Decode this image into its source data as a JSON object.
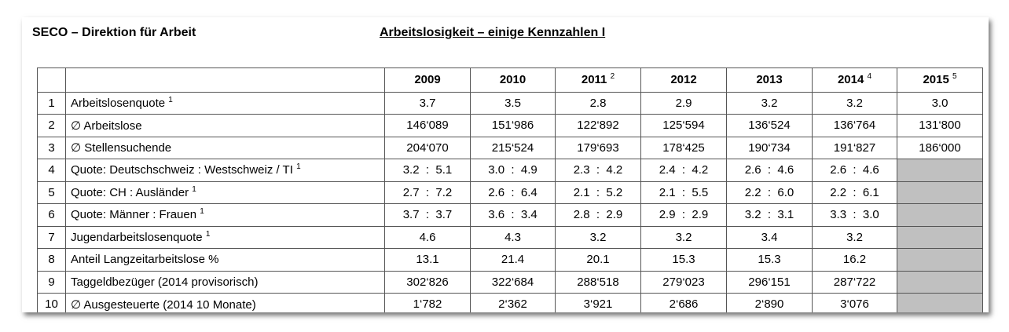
{
  "header": {
    "left": "SECO – Direktion für Arbeit",
    "title": "Arbeitslosigkeit – einige Kennzahlen I"
  },
  "table": {
    "columns": [
      {
        "year": "2009"
      },
      {
        "year": "2010"
      },
      {
        "year": "2011",
        "note": "2"
      },
      {
        "year": "2012"
      },
      {
        "year": "2013"
      },
      {
        "year": "2014",
        "note": "4"
      },
      {
        "year": "2015",
        "note": "5"
      }
    ],
    "rows": [
      {
        "num": 1,
        "label": "Arbeitslosenquote",
        "note": "1",
        "values": [
          "3.7",
          "3.5",
          "2.8",
          "2.9",
          "3.2",
          "3.2",
          "3.0"
        ]
      },
      {
        "num": 2,
        "label": "∅ Arbeitslose",
        "values": [
          "146‘089",
          "151‘986",
          "122‘892",
          "125‘594",
          "136‘524",
          "136‘764",
          "131‘800"
        ]
      },
      {
        "num": 3,
        "label": "∅ Stellensuchende",
        "values": [
          "204‘070",
          "215‘524",
          "179‘693",
          "178‘425",
          "190‘734",
          "191‘827",
          "186‘000"
        ]
      },
      {
        "num": 4,
        "label": "Quote: Deutschschweiz : Westschweiz / TI",
        "note": "1",
        "values": [
          "3.2  :  5.1",
          "3.0  :  4.9",
          "2.3  :  4.2",
          "2.4  :  4.2",
          "2.6  :  4.6",
          "2.6  :  4.6"
        ]
      },
      {
        "num": 5,
        "label": "Quote: CH : Ausländer",
        "note": "1",
        "values": [
          "2.7  :  7.2",
          "2.6  :  6.4",
          "2.1  :  5.2",
          "2.1  :  5.5",
          "2.2  :  6.0",
          "2.2  :  6.1"
        ]
      },
      {
        "num": 6,
        "label": "Quote: Männer : Frauen",
        "note": "1",
        "values": [
          "3.7  :  3.7",
          "3.6  :  3.4",
          "2.8  :  2.9",
          "2.9  :  2.9",
          "3.2  :  3.1",
          "3.3  :  3.0"
        ]
      },
      {
        "num": 7,
        "label": "Jugendarbeitslosenquote",
        "note": "1",
        "values": [
          "4.6",
          "4.3",
          "3.2",
          "3.2",
          "3.4",
          "3.2"
        ]
      },
      {
        "num": 8,
        "label": "Anteil Langzeitarbeitslose %",
        "values": [
          "13.1",
          "21.4",
          "20.1",
          "15.3",
          "15.3",
          "16.2"
        ]
      },
      {
        "num": 9,
        "label": "Taggeldbezüger (2014 provisorisch)",
        "values": [
          "302‘826",
          "322‘684",
          "288‘518",
          "279‘023",
          "296‘151",
          "287‘722"
        ]
      },
      {
        "num": 10,
        "label": "∅ Ausgesteuerte (2014 10 Monate)",
        "values": [
          "1‘782",
          "2‘362",
          "3‘921",
          "2‘686",
          "2‘890",
          "3‘076"
        ]
      }
    ]
  }
}
